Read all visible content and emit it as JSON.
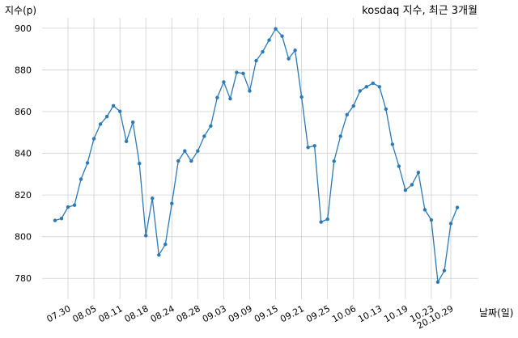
{
  "chart_data": {
    "type": "line",
    "title": "kosdaq 지수, 최근 3개월",
    "ylabel": "지수(p)",
    "xlabel": "날짜(일)",
    "ylim": [
      770,
      905
    ],
    "yticks": [
      780,
      800,
      820,
      840,
      860,
      880,
      900
    ],
    "grid": true,
    "series_color": "#2b79b5",
    "x_tick_labels": [
      "07.30",
      "08.05",
      "08.11",
      "08.18",
      "08.24",
      "08.28",
      "09.03",
      "09.09",
      "09.15",
      "09.21",
      "09.25",
      "10.06",
      "10.13",
      "10.19",
      "10.23",
      "20.10.29"
    ],
    "x_tick_index": [
      2,
      6,
      10,
      14,
      18,
      22,
      26,
      30,
      34,
      38,
      42,
      46,
      50,
      54,
      58,
      61
    ],
    "series": [
      {
        "values": [
          807.8,
          808.7,
          814.2,
          815.1,
          827.6,
          835.4,
          847.0,
          854.0,
          857.6,
          862.8,
          860.1,
          845.7,
          854.9,
          835.1,
          800.5,
          818.4,
          791.2,
          796.3,
          815.9,
          836.3,
          841.1,
          836.3,
          841.1,
          848.2,
          853.1,
          866.7,
          874.2,
          866.2,
          878.8,
          878.3,
          869.9,
          884.4,
          888.7,
          894.3,
          899.7,
          896.2,
          885.4,
          889.4,
          867.0,
          842.8,
          843.6,
          807.0,
          808.4,
          836.2,
          848.2,
          858.5,
          862.7,
          869.9,
          871.9,
          873.6,
          871.9,
          861.2,
          844.3,
          833.8,
          822.3,
          824.9,
          830.8,
          812.9,
          808.0,
          778.2,
          783.7,
          806.3,
          814.0
        ]
      }
    ]
  }
}
